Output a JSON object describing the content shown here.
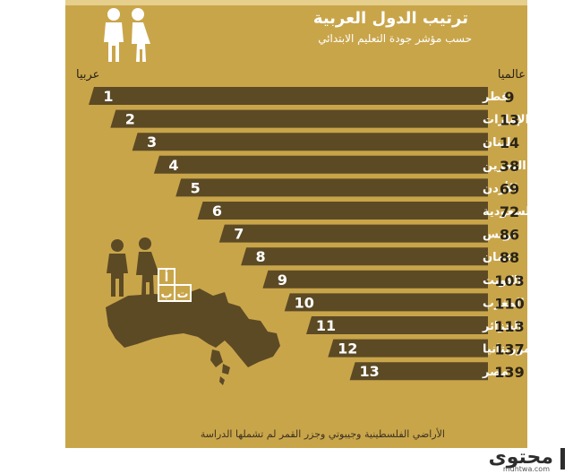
{
  "header": {
    "title": "ترتيب الدول العربية",
    "subtitle": "حسب مؤشر جودة التعليم الابتدائي",
    "world_label": "عالميا",
    "arab_label": "عربيا"
  },
  "footnote": "الأراضي الفلسطينية وجيبوتي وجزر القمر لم تشملها الدراسة",
  "icons": {
    "top": "boy-girl-figures-icon",
    "map": "arab-world-map-icon",
    "letters": "alphabet-blocks-icon"
  },
  "letters": [
    "أ",
    "ب",
    "ت"
  ],
  "colors": {
    "background": "#c9a54a",
    "bar": "#5c4a25",
    "light_text": "#ffffff",
    "dark_text": "#2a2416",
    "silhouette": "#5c4a25"
  },
  "brand": {
    "name": "محتوى",
    "url": "muhtwa.com"
  },
  "chart_data": {
    "type": "bar",
    "orientation": "horizontal",
    "series": [
      {
        "name": "عربيا",
        "values": [
          1,
          2,
          3,
          4,
          5,
          6,
          7,
          8,
          9,
          10,
          11,
          12,
          13
        ]
      },
      {
        "name": "عالميا",
        "values": [
          9,
          13,
          14,
          38,
          69,
          72,
          86,
          88,
          103,
          110,
          113,
          137,
          139
        ]
      }
    ],
    "categories": [
      "قطر",
      "الإمارات",
      "لبنان",
      "البحرين",
      "الأردن",
      "السعودية",
      "تونس",
      "عمان",
      "الكويت",
      "المغرب",
      "الجزائر",
      "موريتانيا",
      "مصر"
    ],
    "arab_rank": [
      1,
      2,
      3,
      4,
      5,
      6,
      7,
      8,
      9,
      10,
      11,
      12,
      13
    ],
    "world_rank": [
      9,
      13,
      14,
      38,
      69,
      72,
      86,
      88,
      103,
      110,
      113,
      137,
      139
    ],
    "title": "ترتيب الدول العربية",
    "subtitle": "حسب مؤشر جودة التعليم الابتدائي"
  }
}
